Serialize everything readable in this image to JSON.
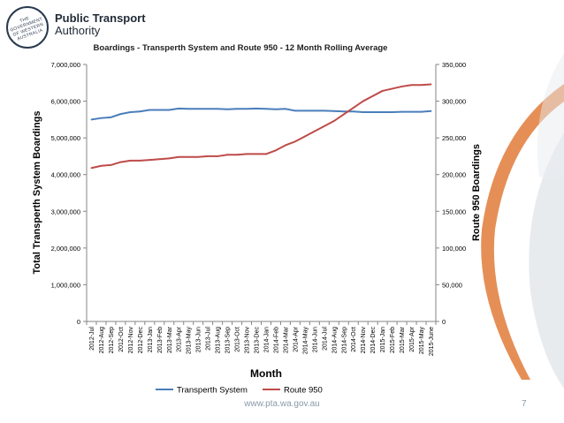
{
  "logo": {
    "line1": "Public Transport",
    "line2": "Authority",
    "crest_text": "THE GOVERNMENT OF WESTERN AUSTRALIA"
  },
  "footer": {
    "url": "www.pta.wa.gov.au",
    "page_number": "7"
  },
  "colors": {
    "series1": "#4a7ebb",
    "series2": "#be4b48",
    "swoosh": "#e07b39",
    "axis": "#868686"
  },
  "chart_data": {
    "type": "line",
    "title": "Boardings - Transperth System and Route 950 - 12 Month Rolling Average",
    "xlabel": "Month",
    "ylabel_left": "Total Transperth System Boardings",
    "ylabel_right": "Route 950 Boardings",
    "ylim_left": [
      0,
      7000000
    ],
    "ylim_right": [
      0,
      350000
    ],
    "yticks_left": [
      "0",
      "1,000,000",
      "2,000,000",
      "3,000,000",
      "4,000,000",
      "5,000,000",
      "6,000,000",
      "7,000,000"
    ],
    "yticks_right": [
      "0",
      "50,000",
      "100,000",
      "150,000",
      "200,000",
      "250,000",
      "300,000",
      "350,000"
    ],
    "categories": [
      "2012-Jul",
      "2012-Aug",
      "2012-Sep",
      "2012-Oct",
      "2012-Nov",
      "2012-Dec",
      "2013-Jan",
      "2013-Feb",
      "2013-Mar",
      "2013-Apr",
      "2013-May",
      "2013-Jun",
      "2013-Jul",
      "2013-Aug",
      "2013-Sep",
      "2013-Oct",
      "2013-Nov",
      "2013-Dec",
      "2014-Jan",
      "2014-Feb",
      "2014-Mar",
      "2014-Apr",
      "2014-May",
      "2014-Jun",
      "2014-Jul",
      "2014-Aug",
      "2014-Sep",
      "2014-Oct",
      "2014-Nov",
      "2014-Dec",
      "2015-Jan",
      "2015-Feb",
      "2015-Mar",
      "2015-Apr",
      "2015-May",
      "2015-June"
    ],
    "legend_position": "bottom",
    "series": [
      {
        "name": "Transperth System",
        "axis": "left",
        "values": [
          5500000,
          5540000,
          5560000,
          5650000,
          5700000,
          5720000,
          5760000,
          5760000,
          5760000,
          5800000,
          5790000,
          5790000,
          5790000,
          5790000,
          5780000,
          5790000,
          5790000,
          5800000,
          5790000,
          5780000,
          5790000,
          5740000,
          5740000,
          5740000,
          5740000,
          5730000,
          5720000,
          5720000,
          5700000,
          5700000,
          5700000,
          5700000,
          5710000,
          5710000,
          5710000,
          5730000
        ]
      },
      {
        "name": "Route 950",
        "axis": "right",
        "values": [
          209000,
          212000,
          213000,
          217000,
          219000,
          219000,
          220000,
          221000,
          222000,
          224000,
          224000,
          224000,
          225000,
          225000,
          227000,
          227000,
          228000,
          228000,
          228000,
          233000,
          240000,
          245000,
          252000,
          259000,
          266000,
          273000,
          282000,
          291000,
          300000,
          307000,
          314000,
          317000,
          320000,
          322000,
          322000,
          323000
        ]
      }
    ]
  }
}
